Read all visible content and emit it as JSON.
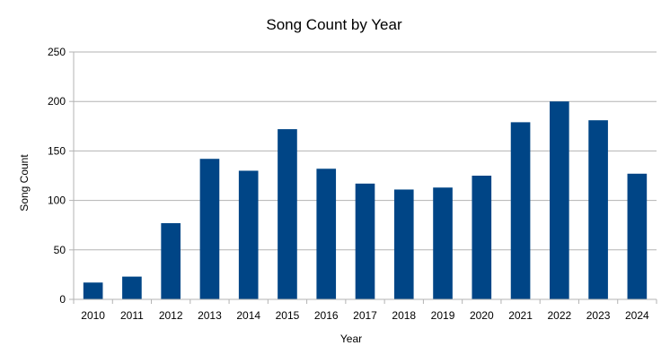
{
  "chart_data": {
    "type": "bar",
    "title": "Song Count by Year",
    "xlabel": "Year",
    "ylabel": "Song Count",
    "categories": [
      "2010",
      "2011",
      "2012",
      "2013",
      "2014",
      "2015",
      "2016",
      "2017",
      "2018",
      "2019",
      "2020",
      "2021",
      "2022",
      "2023",
      "2024"
    ],
    "values": [
      17,
      23,
      77,
      142,
      130,
      172,
      132,
      117,
      111,
      113,
      125,
      179,
      200,
      181,
      127
    ],
    "ylim": [
      0,
      250
    ],
    "yticks": [
      0,
      50,
      100,
      150,
      200,
      250
    ],
    "grid": true,
    "legend": "none",
    "bar_color": "#004586",
    "grid_color": "#b3b3b3"
  }
}
